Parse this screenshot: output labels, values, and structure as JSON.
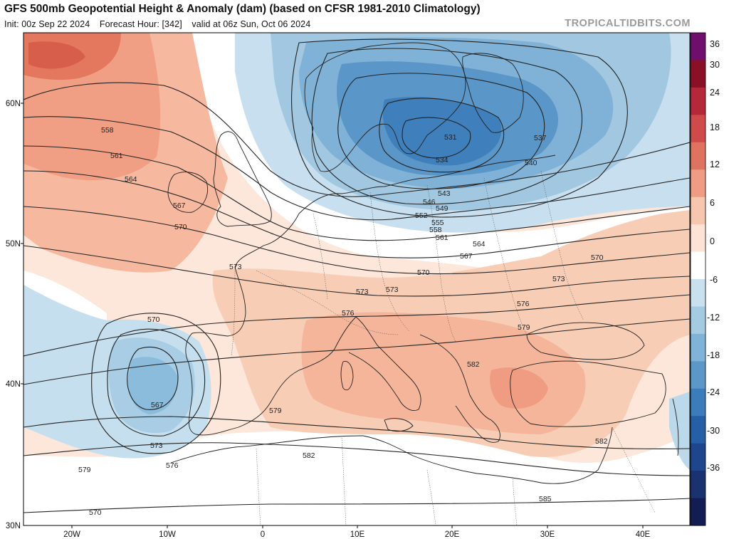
{
  "header": {
    "title": "GFS 500mb Geopotential Height & Anomaly (dam) (based on CFSR 1981-2010 Climatology)",
    "init": "Init: 00z Sep 22 2024",
    "forecast_hour": "Forecast Hour: [342]",
    "valid": "valid at 06z Sun, Oct 06 2024",
    "brand": "TROPICALTIDBITS.COM"
  },
  "axes": {
    "lat_labels": [
      "60N",
      "50N",
      "40N",
      "30N"
    ],
    "lon_labels": [
      "20W",
      "10W",
      "0",
      "10E",
      "20E",
      "30E",
      "40E"
    ]
  },
  "colorbar": {
    "labels": [
      "36",
      "30",
      "24",
      "18",
      "12",
      "6",
      "0",
      "-6",
      "-12",
      "-18",
      "-24",
      "-30",
      "-36"
    ],
    "colors": [
      "#6e0f6e",
      "#8a1027",
      "#b4283a",
      "#cf4a4a",
      "#e0735f",
      "#ee9c84",
      "#f7c6ae",
      "#fce3d6",
      "#ffffff",
      "#c9e0ee",
      "#a5cbe2",
      "#7fb3d7",
      "#5b98c8",
      "#3b7dba",
      "#2560a6",
      "#1d468c",
      "#1a3270",
      "#141d52"
    ]
  },
  "contour_labels": [
    {
      "text": "558"
    },
    {
      "text": "561"
    },
    {
      "text": "564"
    },
    {
      "text": "567"
    },
    {
      "text": "570"
    },
    {
      "text": "573"
    },
    {
      "text": "576"
    },
    {
      "text": "579"
    },
    {
      "text": "582"
    },
    {
      "text": "585"
    },
    {
      "text": "531"
    },
    {
      "text": "534"
    },
    {
      "text": "537"
    },
    {
      "text": "540"
    },
    {
      "text": "543"
    },
    {
      "text": "546"
    },
    {
      "text": "549"
    },
    {
      "text": "552"
    },
    {
      "text": "555"
    },
    {
      "text": "558"
    },
    {
      "text": "561"
    },
    {
      "text": "564"
    },
    {
      "text": "567"
    },
    {
      "text": "570"
    },
    {
      "text": "573"
    },
    {
      "text": "576"
    },
    {
      "text": "579"
    },
    {
      "text": "582"
    },
    {
      "text": "570"
    },
    {
      "text": "573"
    },
    {
      "text": "570"
    },
    {
      "text": "567"
    },
    {
      "text": "573"
    },
    {
      "text": "576"
    },
    {
      "text": "579"
    },
    {
      "text": "582"
    },
    {
      "text": "570"
    },
    {
      "text": "573"
    },
    {
      "text": "582"
    }
  ]
}
